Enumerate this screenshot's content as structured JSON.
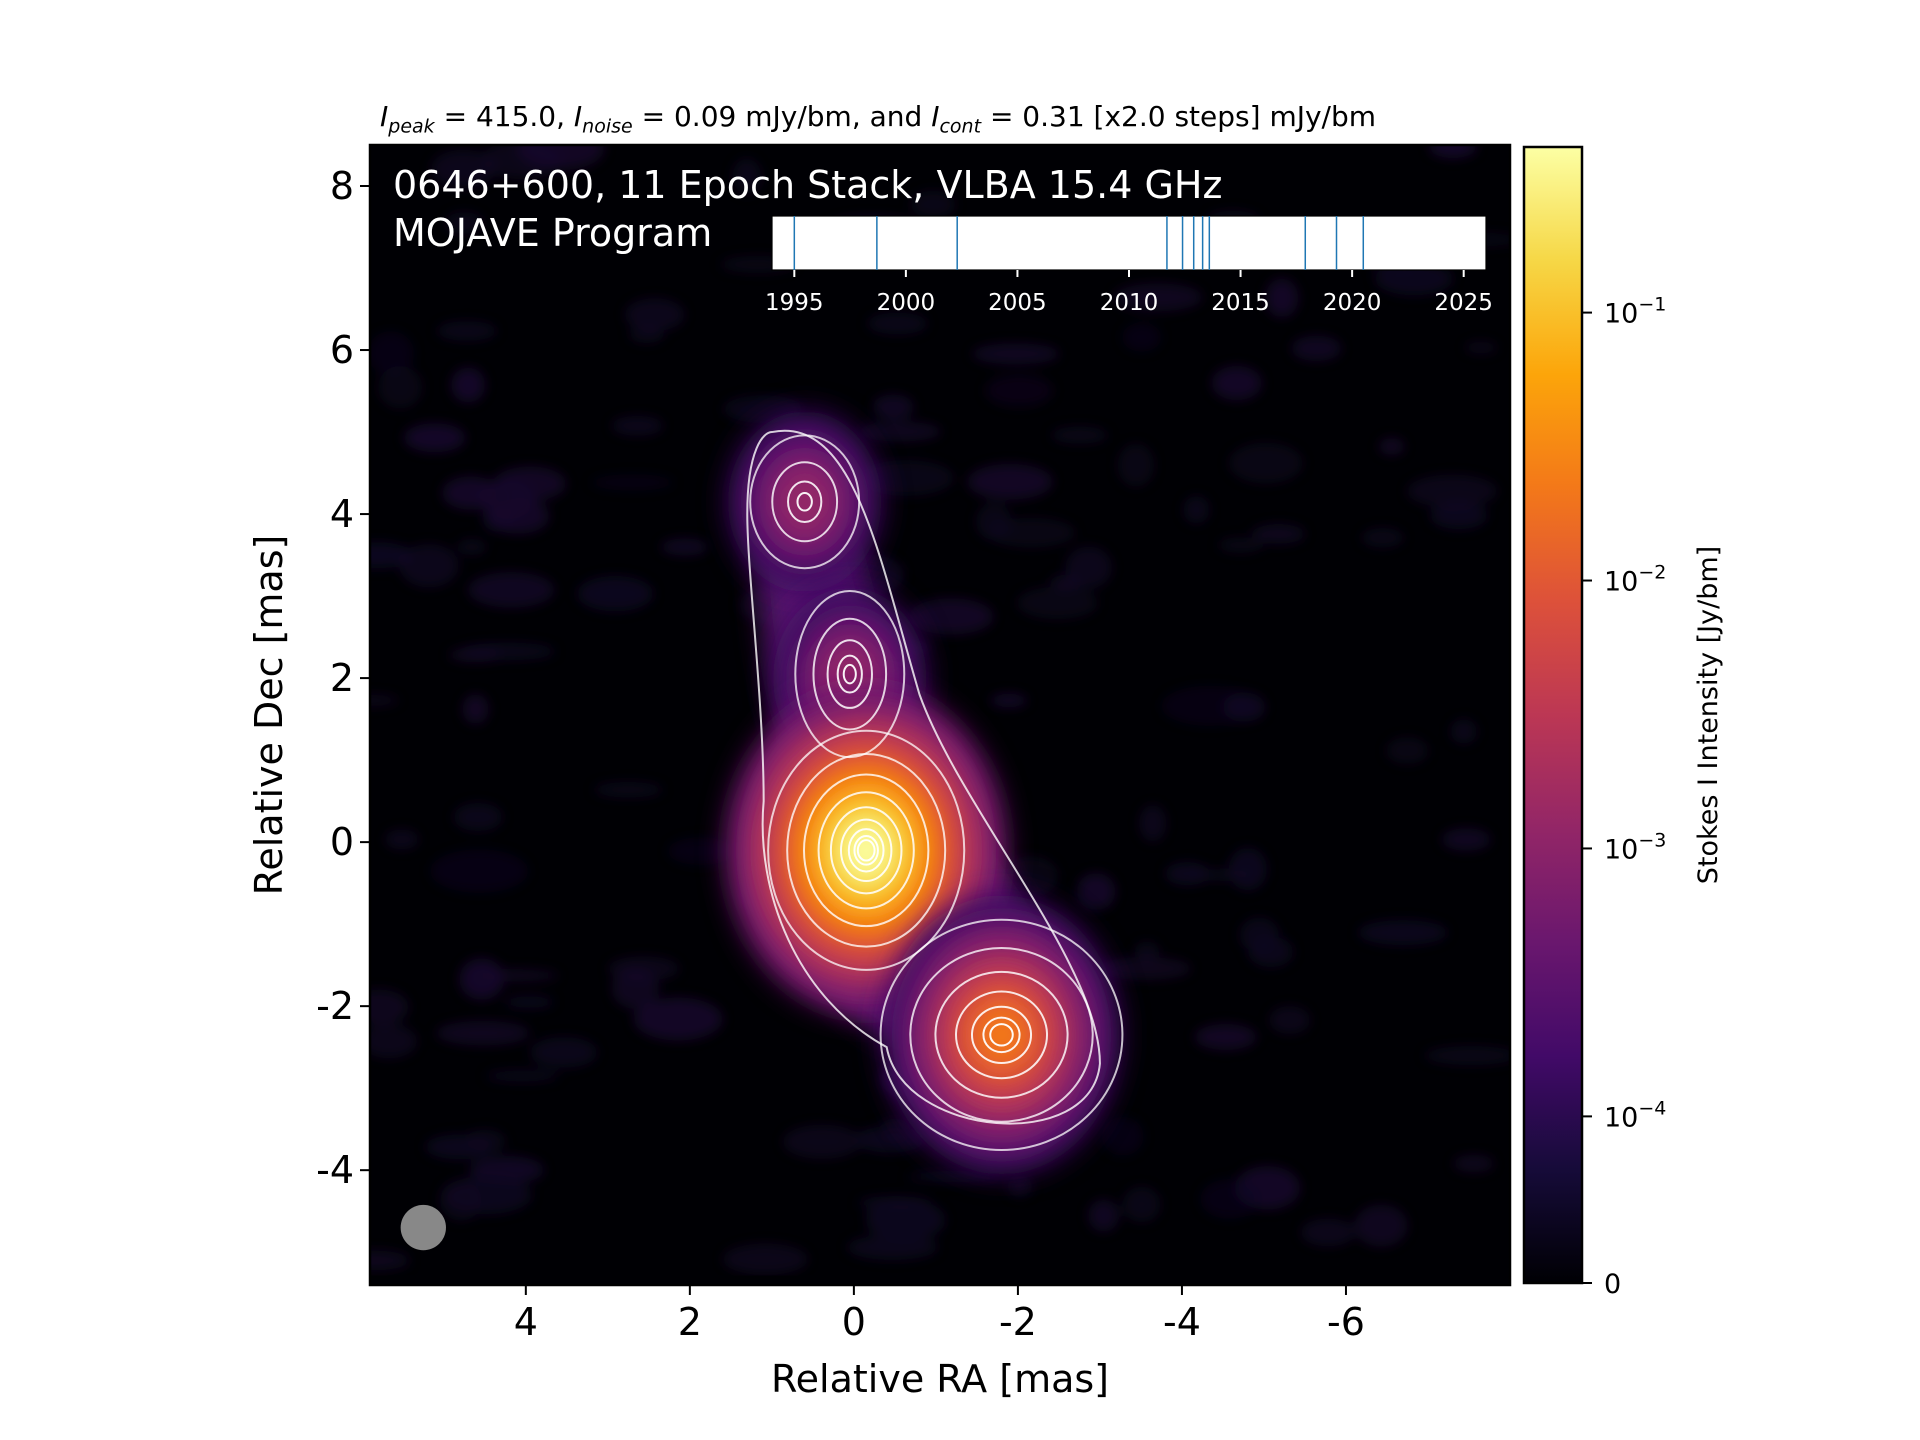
{
  "chart_data": {
    "type": "heatmap",
    "title_line1": "0646+600, 11 Epoch Stack, VLBA 15.4 GHz",
    "title_line2": "MOJAVE Program",
    "subtitle": {
      "peak_label": "I",
      "peak_sub": "peak",
      "peak_value": "= 415.0,",
      "noise_label": "I",
      "noise_sub": "noise",
      "noise_value": "= 0.09 mJy/bm, and",
      "cont_label": "I",
      "cont_sub": "cont",
      "cont_value": "= 0.31 [x2.0 steps] mJy/bm"
    },
    "xlabel": "Relative RA [mas]",
    "ylabel": "Relative Dec [mas]",
    "xlim": [
      5.9,
      -8.0
    ],
    "ylim": [
      -5.4,
      8.5
    ],
    "xticks": [
      4,
      2,
      0,
      -2,
      -4,
      -6
    ],
    "xtick_labels": [
      "4",
      "2",
      "0",
      "-2",
      "-4",
      "-6"
    ],
    "yticks": [
      -4,
      -2,
      0,
      2,
      4,
      6,
      8
    ],
    "ytick_labels": [
      "-4",
      "-2",
      "0",
      "2",
      "4",
      "6",
      "8"
    ],
    "components": [
      {
        "ra": 0.6,
        "dec": 4.15,
        "peak_jy": 0.0021
      },
      {
        "ra": 0.05,
        "dec": 2.0,
        "peak_jy": 0.003
      },
      {
        "ra": -0.15,
        "dec": -0.1,
        "peak_jy": 0.415
      },
      {
        "ra": -1.8,
        "dec": -2.35,
        "peak_jy": 0.047
      }
    ],
    "colorbar": {
      "label": "Stokes I Intensity [Jy/bm]",
      "scale": "log",
      "colormap": "inferno",
      "range_jy": [
        0,
        0.415
      ],
      "ticks": [
        {
          "value": 0.1,
          "label_base": "10",
          "label_exp": "−1"
        },
        {
          "value": 0.01,
          "label_base": "10",
          "label_exp": "−2"
        },
        {
          "value": 0.001,
          "label_base": "10",
          "label_exp": "−3"
        },
        {
          "value": 0.0001,
          "label_base": "10",
          "label_exp": "−4"
        },
        {
          "value": 0,
          "label_base": "0",
          "label_exp": ""
        }
      ]
    },
    "epoch_timeline": {
      "years": [
        1995.0,
        1998.7,
        2002.3,
        2011.7,
        2012.4,
        2012.9,
        2013.3,
        2013.6,
        2017.9,
        2019.3,
        2020.5
      ],
      "range": [
        1994,
        2026
      ],
      "ticks": [
        1995,
        2000,
        2005,
        2010,
        2015,
        2020,
        2025
      ],
      "tick_labels": [
        "1995",
        "2000",
        "2005",
        "2010",
        "2015",
        "2020",
        "2025"
      ]
    },
    "beam": {
      "ra": 5.25,
      "dec": -4.7,
      "size_mas": 0.65,
      "color": "#888888"
    },
    "colors": {
      "background": "#000004",
      "contour": "#ffffff",
      "epoch_line": "#1f77b4"
    }
  }
}
